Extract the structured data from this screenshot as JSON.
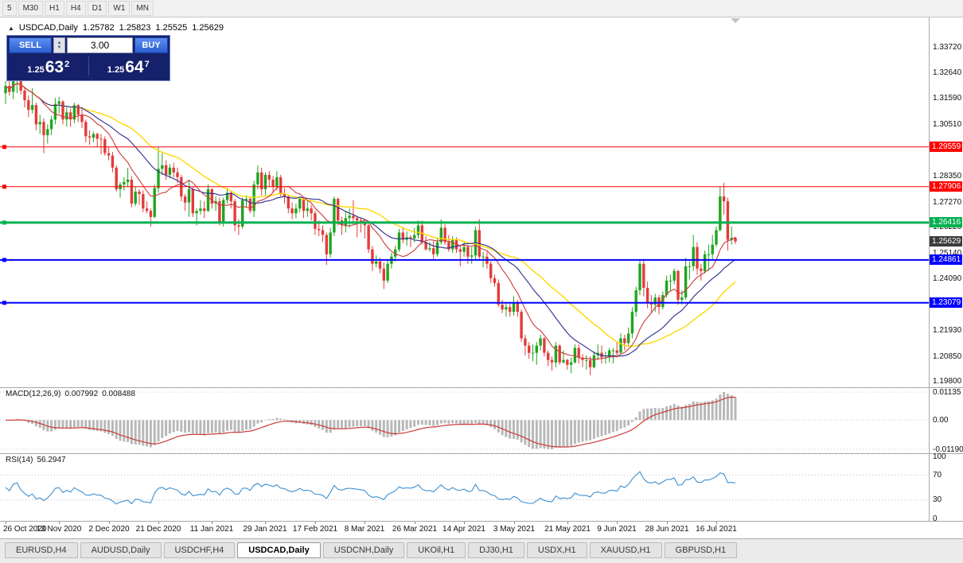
{
  "toolbar": {
    "buttons": [
      "5",
      "M30",
      "H1",
      "H4",
      "D1",
      "W1",
      "MN"
    ]
  },
  "chart_header": {
    "collapse": "▲",
    "symbol": "USDCAD,Daily",
    "open": "1.25782",
    "high": "1.25823",
    "low": "1.25525",
    "close": "1.25629"
  },
  "one_click": {
    "sell_label": "SELL",
    "buy_label": "BUY",
    "volume": "3.00",
    "spinner_up": "▲",
    "spinner_down": "▼",
    "sell_price": {
      "prefix": "1.25",
      "big": "63",
      "sup": "2"
    },
    "buy_price": {
      "prefix": "1.25",
      "big": "64",
      "sup": "7"
    }
  },
  "price_axis": {
    "labels": [
      {
        "text": "1.33720",
        "value": 1.3372
      },
      {
        "text": "1.32640",
        "value": 1.3264
      },
      {
        "text": "1.31590",
        "value": 1.3159
      },
      {
        "text": "1.30510",
        "value": 1.3051
      },
      {
        "text": "1.28350",
        "value": 1.2835
      },
      {
        "text": "1.27270",
        "value": 1.2727
      },
      {
        "text": "1.26220",
        "value": 1.2622
      },
      {
        "text": "1.25140",
        "value": 1.2514
      },
      {
        "text": "1.24090",
        "value": 1.2409
      },
      {
        "text": "1.21930",
        "value": 1.2193
      },
      {
        "text": "1.20850",
        "value": 1.2085
      },
      {
        "text": "1.19800",
        "value": 1.198
      }
    ]
  },
  "hlines": [
    {
      "price": 1.29559,
      "label": "1.29559",
      "color": "#FF0000",
      "width": 1
    },
    {
      "price": 1.27906,
      "label": "1.27906",
      "color": "#FF0000",
      "width": 1
    },
    {
      "price": 1.26416,
      "label": "1.26416",
      "color": "#00B050",
      "width": 3
    },
    {
      "price": 1.24861,
      "label": "1.24861",
      "color": "#0000FF",
      "width": 2
    },
    {
      "price": 1.23079,
      "label": "1.23079",
      "color": "#0000FF",
      "width": 2
    }
  ],
  "current_price": {
    "label": "1.25629",
    "value": 1.25629,
    "color": "#3C3C3C"
  },
  "macd": {
    "name": "MACD(12,26,9)",
    "value": "0.007992",
    "signal_value": "0.008488",
    "fast": 12,
    "slow": 26,
    "signal": 9,
    "axis": [
      {
        "text": "0.01135"
      },
      {
        "text": "0.00"
      },
      {
        "text": "-0.01190"
      }
    ],
    "histogram_color": "#B8B8B8",
    "signal_color": "#CC3A3A"
  },
  "rsi": {
    "name": "RSI(14)",
    "value": "56.2947",
    "period": 14,
    "color": "#3C8FD0",
    "levels": [
      70,
      30
    ],
    "axis": [
      {
        "text": "100",
        "value": 100
      },
      {
        "text": "70",
        "value": 70
      },
      {
        "text": "30",
        "value": 30
      },
      {
        "text": "0",
        "value": 0
      }
    ]
  },
  "tabs": [
    {
      "label": "EURUSD,H4",
      "active": false
    },
    {
      "label": "AUDUSD,Daily",
      "active": false
    },
    {
      "label": "USDCHF,H4",
      "active": false
    },
    {
      "label": "USDCAD,Daily",
      "active": true
    },
    {
      "label": "USDCNH,Daily",
      "active": false
    },
    {
      "label": "UKOil,H1",
      "active": false
    },
    {
      "label": "DJ30,H1",
      "active": false
    },
    {
      "label": "USDX,H1",
      "active": false
    },
    {
      "label": "XAUUSD,H1",
      "active": false
    },
    {
      "label": "GBPUSD,H1",
      "active": false
    }
  ],
  "chart_data": {
    "type": "candlestick",
    "symbol": "USDCAD",
    "period": "Daily",
    "y_range": {
      "min": 1.19566,
      "max": 1.34943
    },
    "x_labels": [
      "26 Oct 2020",
      "13 Nov 2020",
      "2 Dec 2020",
      "21 Dec 2020",
      "11 Jan 2021",
      "29 Jan 2021",
      "17 Feb 2021",
      "8 Mar 2021",
      "26 Mar 2021",
      "14 Apr 2021",
      "3 May 2021",
      "21 May 2021",
      "9 Jun 2021",
      "28 Jun 2021",
      "16 Jul 2021"
    ],
    "label_indices": [
      0,
      14,
      27,
      40,
      54,
      68,
      81,
      94,
      107,
      120,
      133,
      147,
      160,
      173,
      186
    ],
    "colors": {
      "up": "#1FA51F",
      "down": "#E33B3B"
    },
    "ma": [
      {
        "period": 34,
        "color": "#FFD800",
        "width": 1.4
      },
      {
        "period": 21,
        "color": "#2B2B8F",
        "width": 1.1
      },
      {
        "period": 10,
        "color": "#D03A3A",
        "width": 1.1
      }
    ],
    "candles": [
      [
        1.318,
        1.323,
        1.3135,
        1.321
      ],
      [
        1.321,
        1.325,
        1.317,
        1.3185
      ],
      [
        1.3185,
        1.3245,
        1.3155,
        1.3235
      ],
      [
        1.3235,
        1.326,
        1.318,
        1.325
      ],
      [
        1.325,
        1.3255,
        1.3175,
        1.319
      ],
      [
        1.319,
        1.3205,
        1.312,
        1.315
      ],
      [
        1.315,
        1.317,
        1.308,
        1.311
      ],
      [
        1.311,
        1.32,
        1.3095,
        1.313
      ],
      [
        1.313,
        1.314,
        1.3025,
        1.305
      ],
      [
        1.305,
        1.309,
        1.301,
        1.306
      ],
      [
        1.306,
        1.3075,
        1.293,
        1.3005
      ],
      [
        1.3005,
        1.305,
        1.297,
        1.303
      ],
      [
        1.303,
        1.3085,
        1.3005,
        1.307
      ],
      [
        1.307,
        1.316,
        1.305,
        1.3135
      ],
      [
        1.3135,
        1.3165,
        1.3095,
        1.3145
      ],
      [
        1.3145,
        1.315,
        1.305,
        1.307
      ],
      [
        1.307,
        1.312,
        1.304,
        1.31
      ],
      [
        1.31,
        1.3115,
        1.304,
        1.307
      ],
      [
        1.307,
        1.314,
        1.3055,
        1.313
      ],
      [
        1.313,
        1.3135,
        1.306,
        1.309
      ],
      [
        1.309,
        1.3115,
        1.3035,
        1.306
      ],
      [
        1.306,
        1.307,
        1.2975,
        1.3
      ],
      [
        1.3,
        1.3025,
        1.2965,
        1.2995
      ],
      [
        1.2995,
        1.302,
        1.2975,
        1.301
      ],
      [
        1.301,
        1.3015,
        1.2955,
        1.299
      ],
      [
        1.299,
        1.301,
        1.2925,
        1.2988
      ],
      [
        1.2988,
        1.3,
        1.292,
        1.293
      ],
      [
        1.293,
        1.2955,
        1.29,
        1.292
      ],
      [
        1.292,
        1.2935,
        1.285,
        1.287
      ],
      [
        1.287,
        1.288,
        1.277,
        1.278
      ],
      [
        1.278,
        1.281,
        1.2745,
        1.28
      ],
      [
        1.28,
        1.283,
        1.2775,
        1.281
      ],
      [
        1.281,
        1.287,
        1.279,
        1.282
      ],
      [
        1.282,
        1.2835,
        1.2705,
        1.272
      ],
      [
        1.272,
        1.279,
        1.271,
        1.277
      ],
      [
        1.277,
        1.278,
        1.2715,
        1.276
      ],
      [
        1.276,
        1.2775,
        1.2685,
        1.27
      ],
      [
        1.27,
        1.273,
        1.268,
        1.269
      ],
      [
        1.269,
        1.27,
        1.2625,
        1.2665
      ],
      [
        1.2665,
        1.28,
        1.266,
        1.2785
      ],
      [
        1.2785,
        1.2955,
        1.2765,
        1.2865
      ],
      [
        1.2865,
        1.293,
        1.284,
        1.288
      ],
      [
        1.288,
        1.29,
        1.282,
        1.284
      ],
      [
        1.284,
        1.2885,
        1.2825,
        1.287
      ],
      [
        1.287,
        1.289,
        1.283,
        1.285
      ],
      [
        1.285,
        1.287,
        1.2805,
        1.283
      ],
      [
        1.283,
        1.284,
        1.273,
        1.275
      ],
      [
        1.275,
        1.276,
        1.269,
        1.2725
      ],
      [
        1.2725,
        1.2815,
        1.2665,
        1.278
      ],
      [
        1.278,
        1.279,
        1.2665,
        1.268
      ],
      [
        1.268,
        1.27,
        1.263,
        1.269
      ],
      [
        1.269,
        1.2735,
        1.2675,
        1.27
      ],
      [
        1.27,
        1.273,
        1.266,
        1.269
      ],
      [
        1.269,
        1.28,
        1.2685,
        1.278
      ],
      [
        1.278,
        1.2785,
        1.27,
        1.272
      ],
      [
        1.272,
        1.275,
        1.269,
        1.273
      ],
      [
        1.273,
        1.2745,
        1.263,
        1.264
      ],
      [
        1.264,
        1.2745,
        1.2625,
        1.2735
      ],
      [
        1.2735,
        1.2785,
        1.272,
        1.2765
      ],
      [
        1.2765,
        1.277,
        1.27,
        1.273
      ],
      [
        1.273,
        1.274,
        1.2605,
        1.263
      ],
      [
        1.263,
        1.2655,
        1.259,
        1.2625
      ],
      [
        1.2625,
        1.2745,
        1.2615,
        1.2735
      ],
      [
        1.2735,
        1.2755,
        1.2705,
        1.274
      ],
      [
        1.274,
        1.2745,
        1.268,
        1.269
      ],
      [
        1.269,
        1.2815,
        1.2665,
        1.28
      ],
      [
        1.28,
        1.288,
        1.278,
        1.285
      ],
      [
        1.285,
        1.287,
        1.2755,
        1.278
      ],
      [
        1.278,
        1.285,
        1.2755,
        1.284
      ],
      [
        1.284,
        1.2855,
        1.279,
        1.282
      ],
      [
        1.282,
        1.2835,
        1.2765,
        1.279
      ],
      [
        1.279,
        1.2855,
        1.2775,
        1.283
      ],
      [
        1.283,
        1.284,
        1.275,
        1.276
      ],
      [
        1.276,
        1.2785,
        1.272,
        1.275
      ],
      [
        1.275,
        1.2755,
        1.268,
        1.27
      ],
      [
        1.27,
        1.2725,
        1.2655,
        1.268
      ],
      [
        1.268,
        1.272,
        1.266,
        1.27
      ],
      [
        1.27,
        1.275,
        1.2685,
        1.274
      ],
      [
        1.274,
        1.2745,
        1.266,
        1.269
      ],
      [
        1.269,
        1.273,
        1.2665,
        1.27
      ],
      [
        1.27,
        1.2715,
        1.265,
        1.268
      ],
      [
        1.268,
        1.269,
        1.259,
        1.2615
      ],
      [
        1.2615,
        1.265,
        1.2585,
        1.261
      ],
      [
        1.261,
        1.263,
        1.256,
        1.259
      ],
      [
        1.259,
        1.26,
        1.2465,
        1.251
      ],
      [
        1.251,
        1.262,
        1.2495,
        1.26
      ],
      [
        1.26,
        1.275,
        1.2585,
        1.274
      ],
      [
        1.274,
        1.2745,
        1.263,
        1.265
      ],
      [
        1.265,
        1.2665,
        1.259,
        1.263
      ],
      [
        1.263,
        1.269,
        1.26,
        1.266
      ],
      [
        1.266,
        1.27,
        1.262,
        1.267
      ],
      [
        1.267,
        1.2735,
        1.2635,
        1.266
      ],
      [
        1.266,
        1.267,
        1.258,
        1.265
      ],
      [
        1.265,
        1.266,
        1.26,
        1.264
      ],
      [
        1.264,
        1.265,
        1.2575,
        1.263
      ],
      [
        1.263,
        1.2635,
        1.2515,
        1.253
      ],
      [
        1.253,
        1.2545,
        1.244,
        1.247
      ],
      [
        1.247,
        1.2505,
        1.2455,
        1.248
      ],
      [
        1.248,
        1.2495,
        1.243,
        1.245
      ],
      [
        1.245,
        1.2475,
        1.2365,
        1.24
      ],
      [
        1.24,
        1.2485,
        1.239,
        1.247
      ],
      [
        1.247,
        1.2515,
        1.245,
        1.25
      ],
      [
        1.25,
        1.2545,
        1.248,
        1.253
      ],
      [
        1.253,
        1.2615,
        1.252,
        1.26
      ],
      [
        1.26,
        1.262,
        1.2555,
        1.257
      ],
      [
        1.257,
        1.2605,
        1.2545,
        1.258
      ],
      [
        1.258,
        1.259,
        1.254,
        1.2575
      ],
      [
        1.2575,
        1.262,
        1.256,
        1.259
      ],
      [
        1.259,
        1.265,
        1.2575,
        1.263
      ],
      [
        1.263,
        1.265,
        1.255,
        1.256
      ],
      [
        1.256,
        1.2585,
        1.2525,
        1.253
      ],
      [
        1.253,
        1.256,
        1.252,
        1.2535
      ],
      [
        1.2535,
        1.2565,
        1.249,
        1.251
      ],
      [
        1.251,
        1.2575,
        1.25,
        1.256
      ],
      [
        1.256,
        1.2655,
        1.255,
        1.262
      ],
      [
        1.262,
        1.2635,
        1.255,
        1.256
      ],
      [
        1.256,
        1.259,
        1.252,
        1.253
      ],
      [
        1.253,
        1.2585,
        1.2515,
        1.257
      ],
      [
        1.257,
        1.258,
        1.2515,
        1.253
      ],
      [
        1.253,
        1.2545,
        1.246,
        1.252
      ],
      [
        1.252,
        1.256,
        1.25,
        1.254
      ],
      [
        1.254,
        1.255,
        1.247,
        1.25
      ],
      [
        1.25,
        1.254,
        1.247,
        1.2505
      ],
      [
        1.2505,
        1.2625,
        1.249,
        1.261
      ],
      [
        1.261,
        1.2655,
        1.249,
        1.25
      ],
      [
        1.25,
        1.252,
        1.2455,
        1.25
      ],
      [
        1.25,
        1.252,
        1.245,
        1.247
      ],
      [
        1.247,
        1.248,
        1.239,
        1.241
      ],
      [
        1.241,
        1.2425,
        1.2375,
        1.239
      ],
      [
        1.239,
        1.2405,
        1.229,
        1.23
      ],
      [
        1.23,
        1.232,
        1.2265,
        1.228
      ],
      [
        1.228,
        1.231,
        1.225,
        1.229
      ],
      [
        1.229,
        1.231,
        1.225,
        1.227
      ],
      [
        1.227,
        1.2335,
        1.2255,
        1.231
      ],
      [
        1.231,
        1.232,
        1.225,
        1.227
      ],
      [
        1.227,
        1.228,
        1.2145,
        1.216
      ],
      [
        1.216,
        1.2175,
        1.209,
        1.213
      ],
      [
        1.213,
        1.2145,
        1.2075,
        1.21
      ],
      [
        1.21,
        1.2135,
        1.2065,
        1.21
      ],
      [
        1.21,
        1.2145,
        1.205,
        1.213
      ],
      [
        1.213,
        1.2175,
        1.211,
        1.216
      ],
      [
        1.216,
        1.2165,
        1.2085,
        1.21
      ],
      [
        1.21,
        1.211,
        1.2045,
        1.207
      ],
      [
        1.207,
        1.2085,
        1.2025,
        1.206
      ],
      [
        1.206,
        1.2145,
        1.204,
        1.213
      ],
      [
        1.213,
        1.2135,
        1.205,
        1.206
      ],
      [
        1.206,
        1.211,
        1.2055,
        1.207
      ],
      [
        1.207,
        1.2075,
        1.203,
        1.205
      ],
      [
        1.205,
        1.208,
        1.2015,
        1.206
      ],
      [
        1.206,
        1.2135,
        1.2055,
        1.212
      ],
      [
        1.212,
        1.2135,
        1.2055,
        1.208
      ],
      [
        1.208,
        1.2095,
        1.204,
        1.207
      ],
      [
        1.207,
        1.209,
        1.203,
        1.207
      ],
      [
        1.207,
        1.2085,
        1.2007,
        1.204
      ],
      [
        1.204,
        1.2105,
        1.2035,
        1.209
      ],
      [
        1.209,
        1.2135,
        1.207,
        1.21
      ],
      [
        1.21,
        1.213,
        1.2055,
        1.208
      ],
      [
        1.208,
        1.2105,
        1.2055,
        1.208
      ],
      [
        1.208,
        1.212,
        1.206,
        1.211
      ],
      [
        1.211,
        1.212,
        1.2055,
        1.211
      ],
      [
        1.211,
        1.2145,
        1.208,
        1.21
      ],
      [
        1.21,
        1.218,
        1.2095,
        1.216
      ],
      [
        1.216,
        1.2175,
        1.211,
        1.214
      ],
      [
        1.214,
        1.2205,
        1.2125,
        1.218
      ],
      [
        1.218,
        1.229,
        1.216,
        1.227
      ],
      [
        1.227,
        1.2375,
        1.225,
        1.236
      ],
      [
        1.236,
        1.2485,
        1.234,
        1.247
      ],
      [
        1.247,
        1.249,
        1.2335,
        1.237
      ],
      [
        1.237,
        1.2395,
        1.2285,
        1.231
      ],
      [
        1.231,
        1.234,
        1.2265,
        1.23
      ],
      [
        1.23,
        1.2345,
        1.227,
        1.233
      ],
      [
        1.233,
        1.234,
        1.226,
        1.229
      ],
      [
        1.229,
        1.2355,
        1.228,
        1.234
      ],
      [
        1.234,
        1.242,
        1.233,
        1.24
      ],
      [
        1.24,
        1.2425,
        1.2355,
        1.24
      ],
      [
        1.24,
        1.245,
        1.2385,
        1.244
      ],
      [
        1.244,
        1.2445,
        1.23,
        1.232
      ],
      [
        1.232,
        1.236,
        1.23,
        1.233
      ],
      [
        1.233,
        1.2495,
        1.232,
        1.246
      ],
      [
        1.246,
        1.248,
        1.2405,
        1.246
      ],
      [
        1.246,
        1.259,
        1.244,
        1.254
      ],
      [
        1.254,
        1.256,
        1.2425,
        1.245
      ],
      [
        1.245,
        1.247,
        1.24,
        1.244
      ],
      [
        1.244,
        1.2525,
        1.243,
        1.251
      ],
      [
        1.251,
        1.255,
        1.244,
        1.251
      ],
      [
        1.251,
        1.259,
        1.249,
        1.255
      ],
      [
        1.255,
        1.2625,
        1.254,
        1.261
      ],
      [
        1.261,
        1.279,
        1.2605,
        1.275
      ],
      [
        1.275,
        1.2807,
        1.2675,
        1.273
      ],
      [
        1.273,
        1.2745,
        1.2525,
        1.257
      ],
      [
        1.257,
        1.2625,
        1.255,
        1.2578
      ],
      [
        1.2578,
        1.2582,
        1.2552,
        1.2563
      ]
    ]
  }
}
